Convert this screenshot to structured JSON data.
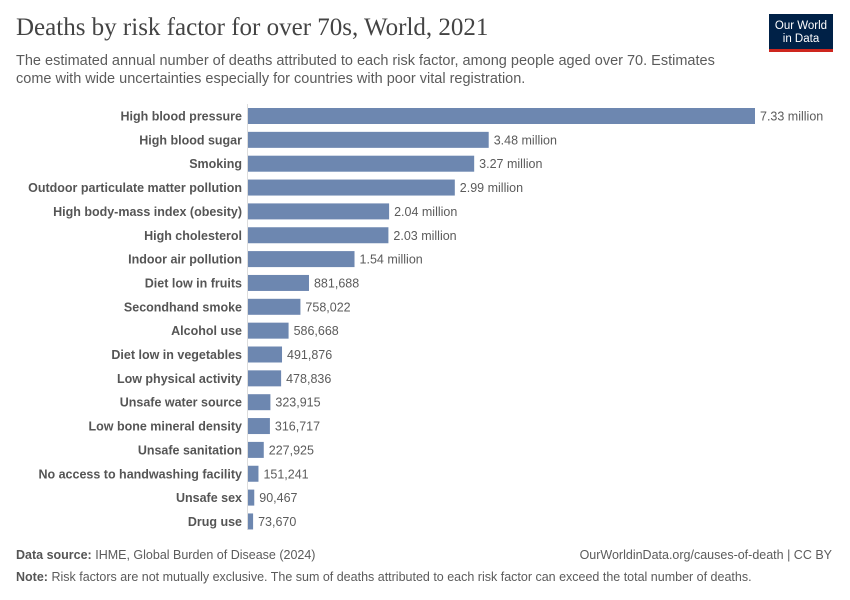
{
  "header": {
    "title": "Deaths by risk factor for over 70s, World, 2021",
    "subtitle": "The estimated annual number of deaths attributed to each risk factor, among people aged over 70. Estimates come with wide uncertainties especially for countries with poor vital registration.",
    "logo": "Our World in Data"
  },
  "chart_data": {
    "type": "bar",
    "orientation": "horizontal",
    "color": "#6d87b0",
    "title": "Deaths by risk factor for over 70s, World, 2021",
    "categories": [
      "High blood pressure",
      "High blood sugar",
      "Smoking",
      "Outdoor particulate matter pollution",
      "High body-mass index (obesity)",
      "High cholesterol",
      "Indoor air pollution",
      "Diet low in fruits",
      "Secondhand smoke",
      "Alcohol use",
      "Diet low in vegetables",
      "Low physical activity",
      "Unsafe water source",
      "Low bone mineral density",
      "Unsafe sanitation",
      "No access to handwashing facility",
      "Unsafe sex",
      "Drug use"
    ],
    "values": [
      7330000,
      3480000,
      3270000,
      2990000,
      2040000,
      2030000,
      1540000,
      881688,
      758022,
      586668,
      491876,
      478836,
      323915,
      316717,
      227925,
      151241,
      90467,
      73670
    ],
    "labels": [
      "7.33 million",
      "3.48 million",
      "3.27 million",
      "2.99 million",
      "2.04 million",
      "2.03 million",
      "1.54 million",
      "881,688",
      "758,022",
      "586,668",
      "491,876",
      "478,836",
      "323,915",
      "316,717",
      "227,925",
      "151,241",
      "90,467",
      "73,670"
    ]
  },
  "footer": {
    "source_label": "Data source:",
    "source": "IHME, Global Burden of Disease (2024)",
    "url": "OurWorldinData.org/causes-of-death | CC BY",
    "note_label": "Note:",
    "note": "Risk factors are not mutually exclusive. The sum of deaths attributed to each risk factor can exceed the total number of deaths."
  }
}
